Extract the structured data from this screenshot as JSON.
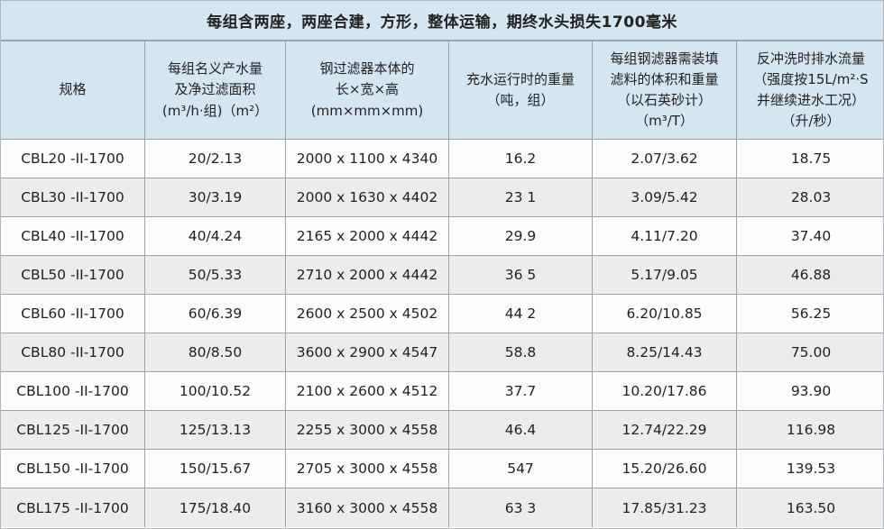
{
  "title": "每组含两座，两座合建，方形，整体运输，期终水头损失1700毫米",
  "colors": {
    "header_bg": "#d3e6f2",
    "alt_row_bg": "#ececec",
    "border": "#9ba3a8",
    "text": "#1f1f1f"
  },
  "table": {
    "headers": [
      "规格",
      "每组名义产水量\n及净过滤面积\n(m³/h·组)（m²）",
      "钢过滤器本体的\n长×宽×高\n(mm×mm×mm)",
      "充水运行时的重量\n（吨，组）",
      "每组钢滤器需装填\n滤料的体积和重量\n（以石英砂计）\n（m³/T）",
      "反冲洗时排水流量\n（强度按15L/m²·S\n并继续进水工况）\n（升/秒）"
    ],
    "rows": [
      [
        "CBL20 -II-1700",
        "20/2.13",
        "2000 x 1100 x 4340",
        "16.2",
        "2.07/3.62",
        "18.75"
      ],
      [
        "CBL30 -II-1700",
        "30/3.19",
        "2000 x 1630 x 4402",
        "23 1",
        "3.09/5.42",
        "28.03"
      ],
      [
        "CBL40 -II-1700",
        "40/4.24",
        "2165 x 2000 x 4442",
        "29.9",
        "4.11/7.20",
        "37.40"
      ],
      [
        "CBL50 -II-1700",
        "50/5.33",
        "2710 x 2000 x 4442",
        "36 5",
        "5.17/9.05",
        "46.88"
      ],
      [
        "CBL60 -II-1700",
        "60/6.39",
        "2600 x 2500 x 4502",
        "44 2",
        "6.20/10.85",
        "56.25"
      ],
      [
        "CBL80 -II-1700",
        "80/8.50",
        "3600 x 2900 x 4547",
        "58.8",
        "8.25/14.43",
        "75.00"
      ],
      [
        "CBL100 -II-1700",
        "100/10.52",
        "2100 x 2600 x 4512",
        "37.7",
        "10.20/17.86",
        "93.90"
      ],
      [
        "CBL125 -II-1700",
        "125/13.13",
        "2255 x 3000 x 4558",
        "46.4",
        "12.74/22.29",
        "116.98"
      ],
      [
        "CBL150 -II-1700",
        "150/15.67",
        "2705 x 3000 x 4558",
        "547",
        "15.20/26.60",
        "139.53"
      ],
      [
        "CBL175 -II-1700",
        "175/18.40",
        "3160 x 3000 x 4558",
        "63 3",
        "17.85/31.23",
        "163.50"
      ]
    ]
  }
}
